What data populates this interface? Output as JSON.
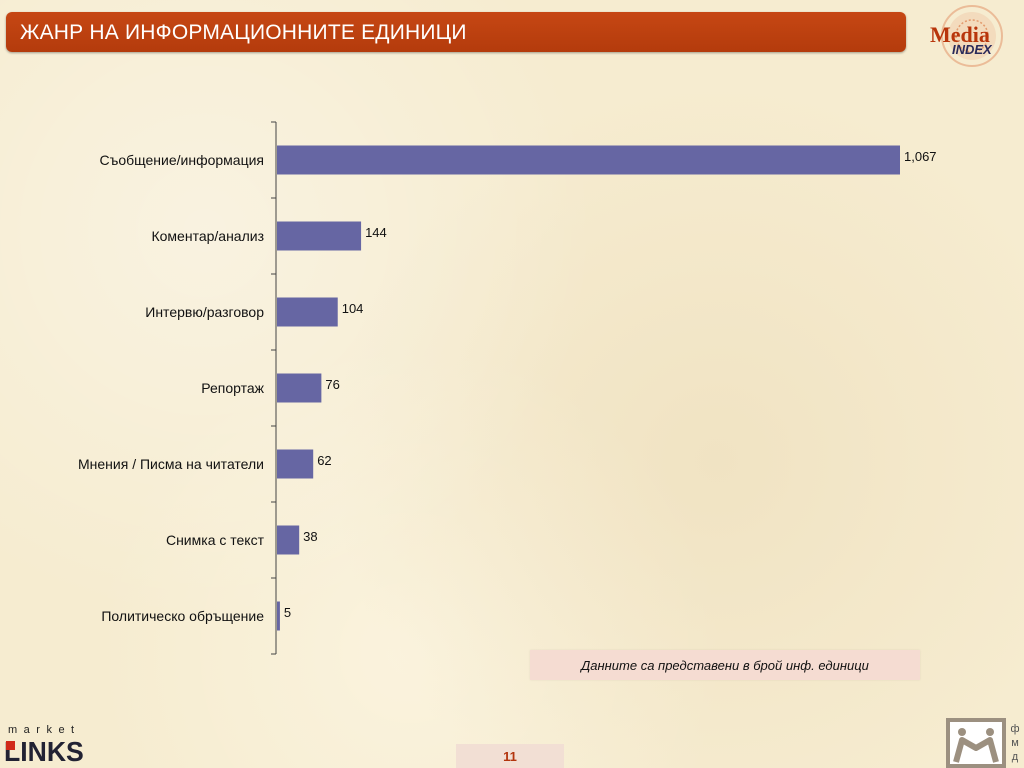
{
  "header": {
    "title": "ЖАНР НА ИНФОРМАЦИОННИТЕ ЕДИНИЦИ"
  },
  "logos": {
    "top_right": {
      "text_1": "Media",
      "text_2": "INDEX"
    },
    "bottom_left": {
      "text_1": "market",
      "text_2": "LINKS"
    },
    "bottom_right": {
      "text": "фмд"
    }
  },
  "note": "Данните са представени в брой инф. единици",
  "page_number": "11",
  "colors": {
    "title_bar": "#bf4211",
    "bar": "#6666a3",
    "note_bg": "#f5dcd2"
  },
  "chart_data": {
    "type": "bar",
    "orientation": "horizontal",
    "categories": [
      "Съобщение/информация",
      "Коментар/анализ",
      "Интервю/разговор",
      "Репортаж",
      "Мнения / Писма на читатели",
      "Снимка с текст",
      "Политическо обръщение"
    ],
    "values": [
      1067,
      144,
      104,
      76,
      62,
      38,
      5
    ],
    "value_labels": [
      "1,067",
      "144",
      "104",
      "76",
      "62",
      "38",
      "5"
    ],
    "xlim": [
      0,
      1067
    ],
    "grid": false,
    "legend": "none"
  }
}
